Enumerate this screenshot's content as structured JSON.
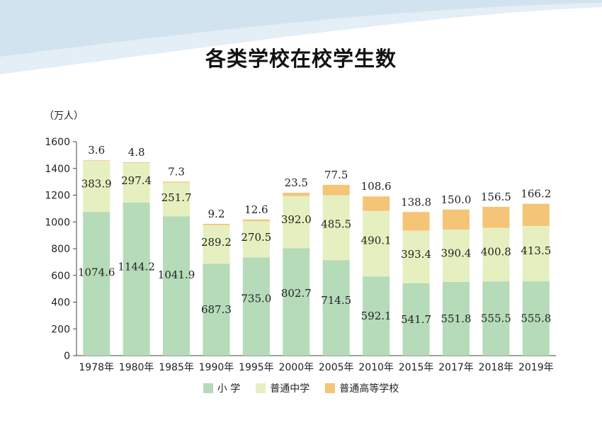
{
  "chart_data": {
    "type": "bar",
    "stacked": true,
    "title": "各类学校在校学生数",
    "unit_label": "（万人）",
    "categories": [
      "1978年",
      "1980年",
      "1985年",
      "1990年",
      "1995年",
      "2000年",
      "2005年",
      "2010年",
      "2015年",
      "2017年",
      "2018年",
      "2019年"
    ],
    "series": [
      {
        "name": "小  学",
        "color": "#b5dbb9",
        "values": [
          1074.6,
          1144.2,
          1041.9,
          687.3,
          735.0,
          802.7,
          714.5,
          592.1,
          541.7,
          551.8,
          555.5,
          555.8
        ],
        "labels": [
          "1074.6",
          "1144.2",
          "1041.9",
          "687.3",
          "735.0",
          "802.7",
          "714.5",
          "592.1",
          "541.7",
          "551.8",
          "555.5",
          "555.8"
        ]
      },
      {
        "name": "普通中学",
        "color": "#e6efbf",
        "values": [
          383.9,
          297.4,
          251.7,
          289.2,
          270.5,
          392.0,
          485.5,
          490.1,
          393.4,
          390.4,
          400.8,
          413.5
        ],
        "labels": [
          "383.9",
          "297.4",
          "251.7",
          "289.2",
          "270.5",
          "392.0",
          "485.5",
          "490.1",
          "393.4",
          "390.4",
          "400.8",
          "413.5"
        ]
      },
      {
        "name": "普通高等学校",
        "color": "#f4c577",
        "values": [
          3.6,
          4.8,
          7.3,
          9.2,
          12.6,
          23.5,
          77.5,
          108.6,
          138.8,
          150.0,
          156.5,
          166.2
        ],
        "labels": [
          "3.6",
          "4.8",
          "7.3",
          "9.2",
          "12.6",
          "23.5",
          "77.5",
          "108.6",
          "138.8",
          "150.0",
          "156.5",
          "166.2"
        ]
      }
    ],
    "yticks": [
      "0",
      "200",
      "400",
      "600",
      "800",
      "1000",
      "1200",
      "1400",
      "1600"
    ],
    "ylim": [
      0,
      1600
    ],
    "grid": false,
    "legend": "bottom"
  }
}
